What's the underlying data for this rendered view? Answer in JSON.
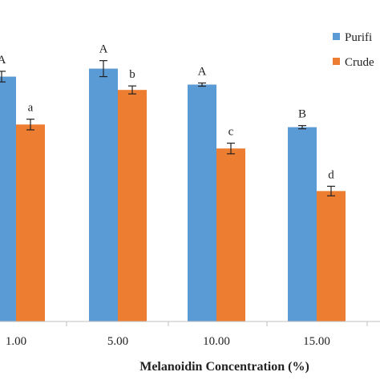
{
  "chart_data": {
    "type": "bar",
    "xlabel": "Melanoidin Concentration (%)",
    "categories": [
      "1.00",
      "5.00",
      "10.00",
      "15.00"
    ],
    "series": [
      {
        "name": "Purifi",
        "color": "#5b9bd5",
        "values": [
          92,
          95,
          89,
          73
        ],
        "errors": [
          2,
          3,
          0.6,
          0.6
        ],
        "labels": [
          "A",
          "A",
          "A",
          "B"
        ]
      },
      {
        "name": "Crude",
        "color": "#ed7d31",
        "values": [
          74,
          87,
          65,
          49
        ],
        "errors": [
          2,
          1.5,
          2,
          1.8
        ],
        "labels": [
          "a",
          "b",
          "c",
          "d"
        ]
      }
    ],
    "ylim": [
      0,
      120
    ],
    "legend": "top-right",
    "grid": false
  }
}
